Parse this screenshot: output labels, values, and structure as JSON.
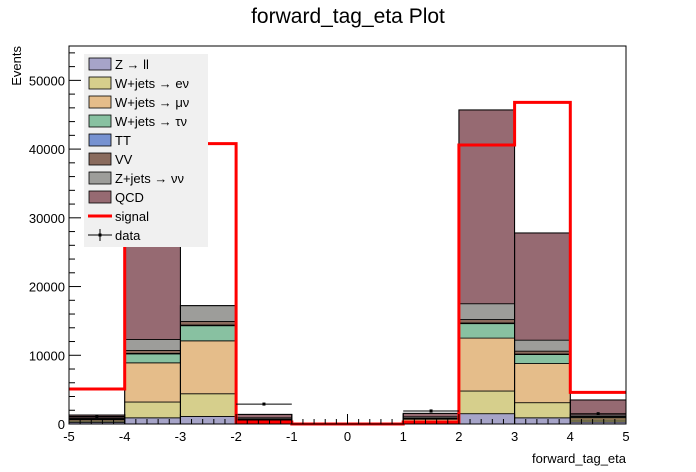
{
  "chart_data": {
    "type": "stacked-histogram",
    "title": "forward_tag_eta Plot",
    "xlabel": "forward_tag_eta",
    "ylabel": "Events",
    "xlim": [
      -5,
      5
    ],
    "ylim": [
      0,
      55000
    ],
    "bin_edges": [
      -5,
      -4,
      -3,
      -2,
      -1,
      0,
      1,
      2,
      3,
      4,
      5
    ],
    "x_ticks": [
      -5,
      -4,
      -3,
      -2,
      -1,
      0,
      1,
      2,
      3,
      4,
      5
    ],
    "y_ticks": [
      0,
      10000,
      20000,
      30000,
      40000,
      50000
    ],
    "series": [
      {
        "name": "Z → ll",
        "color": "#a6a4c8",
        "values": [
          250,
          900,
          1100,
          120,
          0,
          0,
          150,
          1500,
          900,
          300
        ]
      },
      {
        "name": "W+jets → eν",
        "color": "#d6cf8c",
        "values": [
          200,
          2300,
          3300,
          200,
          0,
          0,
          250,
          3300,
          2200,
          280
        ]
      },
      {
        "name": "W+jets → μν",
        "color": "#e5bd8a",
        "values": [
          200,
          5700,
          7700,
          250,
          0,
          0,
          300,
          7700,
          5700,
          300
        ]
      },
      {
        "name": "W+jets → τν",
        "color": "#88c1a1",
        "values": [
          80,
          1300,
          2200,
          100,
          0,
          0,
          100,
          2100,
          1300,
          150
        ]
      },
      {
        "name": "TT",
        "color": "#7792d1",
        "values": [
          10,
          80,
          100,
          10,
          0,
          0,
          10,
          100,
          80,
          10
        ]
      },
      {
        "name": "VV",
        "color": "#8a6b5d",
        "values": [
          30,
          420,
          520,
          40,
          0,
          0,
          40,
          500,
          420,
          60
        ]
      },
      {
        "name": "Z+jets → νν",
        "color": "#9d9d9a",
        "values": [
          130,
          1600,
          2300,
          180,
          0,
          0,
          200,
          2300,
          1600,
          200
        ]
      },
      {
        "name": "QCD",
        "color": "#966a72",
        "values": [
          400,
          34600,
          0,
          500,
          0,
          0,
          500,
          28200,
          15600,
          2200
        ]
      }
    ],
    "stack_totals": [
      1300,
      46900,
      17220,
      1400,
      0,
      0,
      1550,
      45700,
      27800,
      3500
    ],
    "signal": {
      "name": "signal",
      "color": "#ff0000",
      "values": [
        5100,
        40800,
        40800,
        300,
        0,
        0,
        300,
        40600,
        46800,
        4600
      ]
    },
    "data": {
      "name": "data",
      "values": [
        1100,
        0,
        0,
        2900,
        0,
        0,
        1900,
        0,
        0,
        1500
      ],
      "errors": [
        30,
        0,
        0,
        50,
        0,
        0,
        40,
        0,
        0,
        35
      ]
    },
    "legend": {
      "position": "top-left"
    }
  }
}
